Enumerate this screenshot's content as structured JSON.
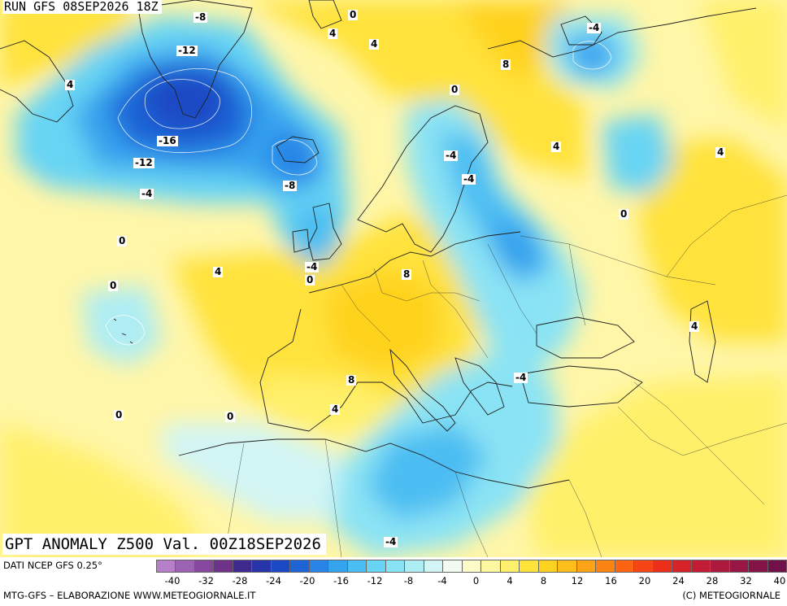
{
  "header": {
    "run_title": "RUN GFS 08SEP2026 18Z",
    "main_title": "GPT ANOMALY Z500 Val. 00Z18SEP2026"
  },
  "contour_labels": [
    {
      "text": "-8"
    },
    {
      "text": "0"
    },
    {
      "text": "4"
    },
    {
      "text": "4"
    },
    {
      "text": "-4"
    },
    {
      "text": "-12"
    },
    {
      "text": "4"
    },
    {
      "text": "8"
    },
    {
      "text": "0"
    },
    {
      "text": "-16"
    },
    {
      "text": "4"
    },
    {
      "text": "-4"
    },
    {
      "text": "4"
    },
    {
      "text": "-12"
    },
    {
      "text": "-4"
    },
    {
      "text": "-8"
    },
    {
      "text": "-4"
    },
    {
      "text": "0"
    },
    {
      "text": "0"
    },
    {
      "text": "4"
    },
    {
      "text": "-4"
    },
    {
      "text": "0"
    },
    {
      "text": "8"
    },
    {
      "text": "0"
    },
    {
      "text": "4"
    },
    {
      "text": "-4"
    },
    {
      "text": "8"
    },
    {
      "text": "4"
    },
    {
      "text": "0"
    },
    {
      "text": "0"
    },
    {
      "text": "-4"
    }
  ],
  "legend": {
    "source_label": "DATI NCEP GFS 0.25°",
    "footer_left": "MTG-GFS – ELABORAZIONE WWW.METEOGIORNALE.IT",
    "footer_right": "(C) METEOGIORNALE",
    "tick_labels": [
      "-40",
      "-32",
      "-28",
      "-24",
      "-20",
      "-16",
      "-12",
      "-8",
      "-4",
      "0",
      "4",
      "8",
      "12",
      "16",
      "20",
      "24",
      "28",
      "32",
      "40"
    ],
    "colors": [
      "#b57fc9",
      "#9d62b4",
      "#86479e",
      "#6e3288",
      "#3e2a8f",
      "#2733a8",
      "#1b48c4",
      "#1e64d6",
      "#2884e6",
      "#35a2ee",
      "#4bbdf2",
      "#67d4f4",
      "#8ae3f4",
      "#aeedf4",
      "#d2f5f5",
      "#f2fbf2",
      "#fdfbc8",
      "#fff6a0",
      "#fff06b",
      "#ffe23a",
      "#ffd21f",
      "#ffbe1a",
      "#ffa316",
      "#ff8313",
      "#ff6413",
      "#f74616",
      "#ec2e1b",
      "#d8222a",
      "#c41c35",
      "#ad1a3e",
      "#981744",
      "#841448",
      "#70114a"
    ]
  }
}
